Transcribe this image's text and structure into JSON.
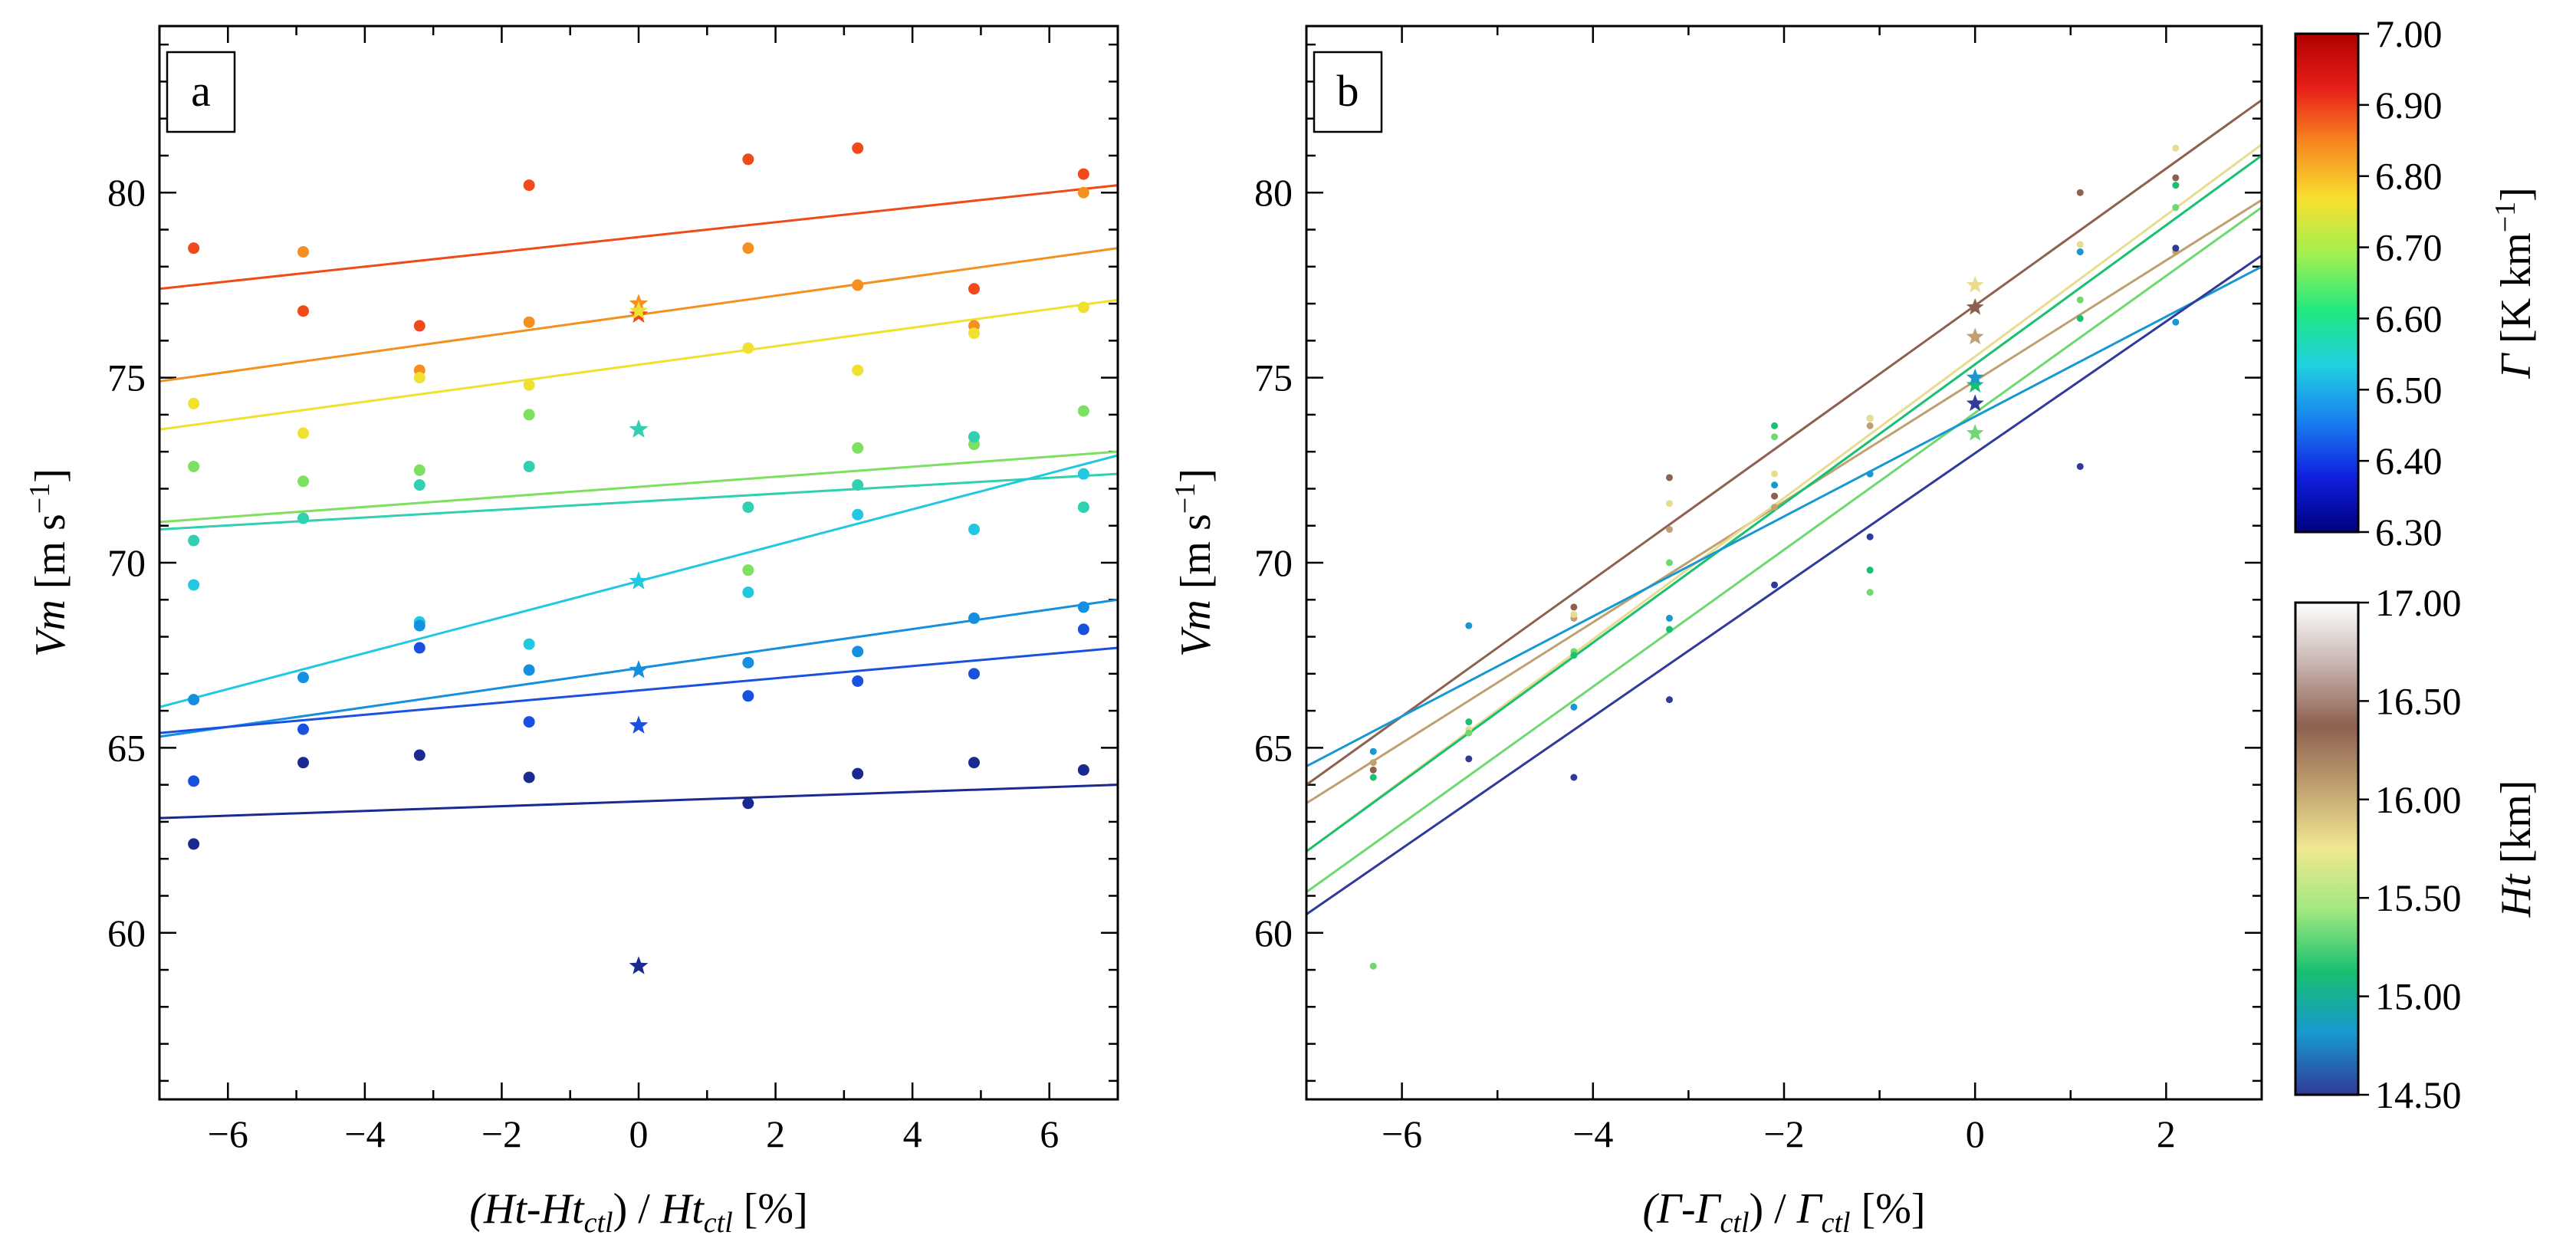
{
  "chart_data": [
    {
      "type": "scatter",
      "panel_label": "a",
      "xlabel": "(Ht-Ht_ctl) / Ht_ctl [%]",
      "ylabel": "Vm [m s^-1]",
      "xlim": [
        -7,
        7
      ],
      "ylim": [
        55.5,
        84.5
      ],
      "xticks": [
        -6,
        -4,
        -2,
        0,
        2,
        4,
        6
      ],
      "yticks": [
        60,
        65,
        70,
        75,
        80
      ],
      "xtick_labels": [
        "−6",
        "−4",
        "−2",
        "0",
        "2",
        "4",
        "6"
      ],
      "ytick_labels": [
        "60",
        "65",
        "70",
        "75",
        "80"
      ],
      "x_categories": [
        -6.5,
        -4.9,
        -3.2,
        -1.6,
        0,
        1.6,
        3.2,
        4.9,
        6.5
      ],
      "marker_note": "stars mark the control run (x = 0)",
      "series": [
        {
          "color": "#f04a1a",
          "values": [
            78.5,
            76.8,
            76.4,
            80.2,
            76.7,
            80.9,
            81.2,
            77.4,
            80.5
          ],
          "fit": [
            77.4,
            80.2
          ]
        },
        {
          "color": "#f59020",
          "values": [
            null,
            78.4,
            75.2,
            76.5,
            77.0,
            78.5,
            77.5,
            76.4,
            80.0
          ],
          "fit": [
            74.9,
            78.5
          ]
        },
        {
          "color": "#f0e030",
          "values": [
            74.3,
            73.5,
            75.0,
            74.8,
            76.8,
            75.8,
            75.2,
            76.2,
            76.9
          ],
          "fit": [
            73.6,
            77.1
          ]
        },
        {
          "color": "#7ee060",
          "values": [
            72.6,
            72.2,
            72.5,
            74.0,
            73.6,
            69.8,
            73.1,
            73.2,
            74.1
          ],
          "fit": [
            71.1,
            73.0
          ]
        },
        {
          "color": "#30d0b0",
          "values": [
            70.6,
            71.2,
            72.1,
            72.6,
            73.6,
            71.5,
            72.1,
            73.4,
            71.5
          ],
          "fit": [
            70.9,
            72.4
          ]
        },
        {
          "color": "#20c8e0",
          "values": [
            69.4,
            null,
            68.4,
            67.8,
            69.5,
            69.2,
            71.3,
            70.9,
            72.4
          ],
          "fit": [
            66.1,
            72.9
          ]
        },
        {
          "color": "#1590e0",
          "values": [
            66.3,
            66.9,
            68.3,
            67.1,
            67.1,
            67.3,
            67.6,
            68.5,
            68.8
          ],
          "fit": [
            65.3,
            69.0
          ]
        },
        {
          "color": "#1a50e0",
          "values": [
            64.1,
            65.5,
            67.7,
            65.7,
            65.6,
            66.4,
            66.8,
            67.0,
            68.2
          ],
          "fit": [
            65.4,
            67.7
          ]
        },
        {
          "color": "#1a2a90",
          "values": [
            62.4,
            64.6,
            64.8,
            64.2,
            59.1,
            63.5,
            64.3,
            64.6,
            64.4
          ],
          "fit": [
            63.1,
            64.0
          ]
        }
      ]
    },
    {
      "type": "scatter",
      "panel_label": "b",
      "xlabel": "(Γ-Γ_ctl) / Γ_ctl [%]",
      "ylabel": "Vm [m s^-1]",
      "xlim": [
        -7,
        3
      ],
      "ylim": [
        55.5,
        84.5
      ],
      "xticks": [
        -6,
        -4,
        -2,
        0,
        2
      ],
      "yticks": [
        60,
        65,
        70,
        75,
        80
      ],
      "xtick_labels": [
        "−6",
        "−4",
        "−2",
        "0",
        "2"
      ],
      "ytick_labels": [
        "60",
        "65",
        "70",
        "75",
        "80"
      ],
      "x_categories": [
        -6.3,
        -5.3,
        -4.2,
        -3.2,
        -2.1,
        -1.1,
        0,
        1.1,
        2.1
      ],
      "marker_note": "stars mark the control run (x = 0)",
      "series": [
        {
          "color": "#8e6050",
          "values": [
            64.4,
            null,
            68.8,
            72.3,
            71.8,
            73.9,
            76.9,
            80.0,
            80.4
          ],
          "fit": [
            64.0,
            82.5
          ]
        },
        {
          "color": "#c0a070",
          "values": [
            64.6,
            null,
            68.5,
            70.9,
            71.5,
            73.7,
            76.1,
            78.4,
            78.4
          ],
          "fit": [
            63.5,
            79.8
          ]
        },
        {
          "color": "#e8dc90",
          "values": [
            null,
            65.5,
            68.6,
            71.6,
            72.4,
            73.9,
            77.5,
            78.6,
            81.2
          ],
          "fit": [
            62.2,
            81.3
          ]
        },
        {
          "color": "#70d870",
          "values": [
            59.1,
            65.4,
            67.6,
            70.0,
            73.4,
            69.2,
            73.5,
            77.1,
            79.6
          ],
          "fit": [
            61.1,
            79.6
          ]
        },
        {
          "color": "#18c070",
          "values": [
            64.2,
            65.7,
            67.5,
            68.2,
            73.7,
            69.8,
            74.8,
            76.6,
            80.2
          ],
          "fit": [
            62.2,
            81.0
          ]
        },
        {
          "color": "#1898d0",
          "values": [
            64.9,
            68.3,
            66.1,
            68.5,
            72.1,
            72.4,
            75.0,
            78.4,
            76.5
          ],
          "fit": [
            64.5,
            78.0
          ]
        },
        {
          "color": "#303a98",
          "values": [
            null,
            64.7,
            64.2,
            66.3,
            69.4,
            70.7,
            74.3,
            72.6,
            78.5
          ],
          "fit": [
            60.5,
            78.3
          ]
        }
      ]
    }
  ],
  "colorbars": [
    {
      "title": "Γ [K km^-1]",
      "tick_labels": [
        "7.00",
        "6.90",
        "6.80",
        "6.70",
        "6.60",
        "6.50",
        "6.40",
        "6.30"
      ],
      "colors": [
        "#b00000",
        "#e8201a",
        "#f88a20",
        "#f8e030",
        "#a0f050",
        "#20e880",
        "#20d0e0",
        "#1880f0",
        "#1020e0",
        "#000080"
      ]
    },
    {
      "title": "Ht [km]",
      "tick_labels": [
        "17.00",
        "16.50",
        "16.00",
        "15.50",
        "15.00",
        "14.50"
      ],
      "colors": [
        "#ffffff",
        "#c8b4b0",
        "#8e6050",
        "#c0a070",
        "#f0e890",
        "#a0e880",
        "#18c070",
        "#1898d0",
        "#303a98"
      ]
    }
  ]
}
